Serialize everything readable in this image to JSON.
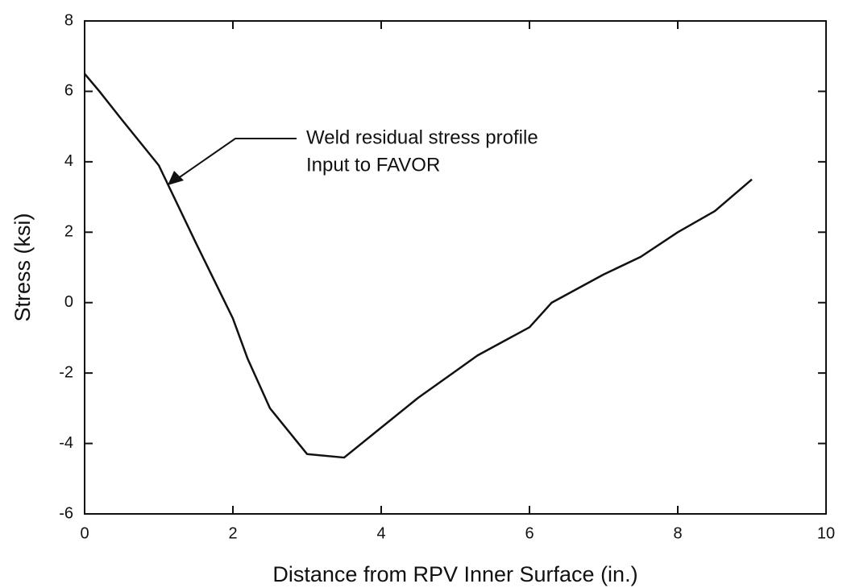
{
  "chart_data": {
    "type": "line",
    "xlabel": "Distance from RPV Inner Surface (in.)",
    "ylabel": "Stress (ksi)",
    "annotation": [
      "Weld residual stress profile",
      "Input to FAVOR"
    ],
    "x": [
      0,
      0.2,
      0.5,
      1.0,
      1.5,
      2.0,
      2.2,
      2.5,
      3.0,
      3.5,
      4.0,
      4.5,
      5.0,
      5.3,
      6.0,
      6.3,
      7.0,
      7.5,
      8.0,
      8.5,
      9.0
    ],
    "series": [
      {
        "color": "#111111",
        "values": [
          6.5,
          6.0,
          5.2,
          3.9,
          1.7,
          -0.45,
          -1.6,
          -3.0,
          -4.3,
          -4.4,
          -3.55,
          -2.7,
          -1.95,
          -1.5,
          -0.7,
          0.0,
          0.8,
          1.3,
          2.0,
          2.6,
          3.5
        ]
      }
    ],
    "xlim": [
      0,
      10
    ],
    "xticks": [
      0,
      2,
      4,
      6,
      8,
      10
    ],
    "ylim": [
      -6,
      8
    ],
    "yticks": [
      -6,
      -4,
      -2,
      0,
      2,
      4,
      6,
      8
    ]
  }
}
